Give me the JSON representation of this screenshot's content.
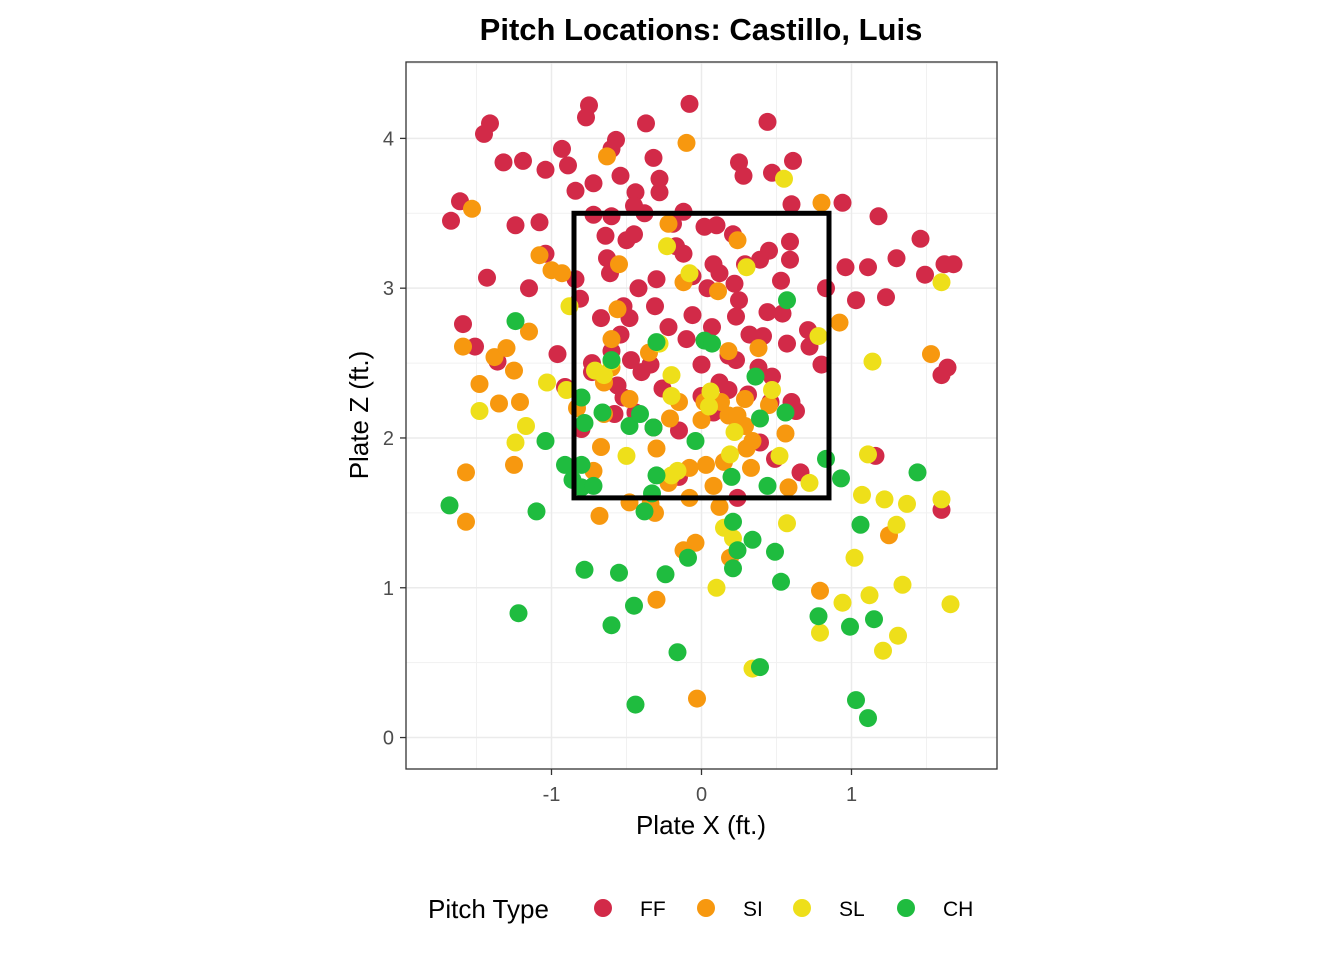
{
  "chart_data": {
    "type": "scatter",
    "title": "Pitch Locations: Castillo, Luis",
    "xlabel": "Plate X (ft.)",
    "ylabel": "Plate Z (ft.)",
    "xlim": [
      -1.97,
      1.97
    ],
    "ylim": [
      -0.21,
      4.51
    ],
    "x_ticks": [
      -1,
      0,
      1
    ],
    "y_ticks": [
      0,
      1,
      2,
      3,
      4
    ],
    "x_tick_labels": [
      "-1",
      "0",
      "1"
    ],
    "y_tick_labels": [
      "0",
      "1",
      "2",
      "3",
      "4"
    ],
    "grid": true,
    "legend": {
      "title": "Pitch Type",
      "position": "bottom"
    },
    "strike_zone": {
      "x_min": -0.85,
      "x_max": 0.85,
      "z_min": 1.6,
      "z_max": 3.5
    },
    "series": [
      {
        "name": "FF",
        "color": "#d22a48",
        "points": [
          [
            -0.75,
            4.22
          ],
          [
            -0.08,
            4.23
          ],
          [
            0.44,
            4.11
          ],
          [
            -1.41,
            4.1
          ],
          [
            -1.45,
            4.03
          ],
          [
            -0.77,
            4.14
          ],
          [
            -0.93,
            3.93
          ],
          [
            -0.57,
            3.99
          ],
          [
            -0.37,
            4.1
          ],
          [
            -0.6,
            3.93
          ],
          [
            -1.32,
            3.84
          ],
          [
            -1.19,
            3.85
          ],
          [
            -0.89,
            3.82
          ],
          [
            -1.04,
            3.79
          ],
          [
            -0.32,
            3.87
          ],
          [
            0.25,
            3.84
          ],
          [
            0.61,
            3.85
          ],
          [
            0.47,
            3.77
          ],
          [
            0.28,
            3.75
          ],
          [
            -0.72,
            3.7
          ],
          [
            -0.84,
            3.65
          ],
          [
            -0.54,
            3.75
          ],
          [
            -0.44,
            3.64
          ],
          [
            -0.28,
            3.73
          ],
          [
            -0.28,
            3.64
          ],
          [
            -1.61,
            3.58
          ],
          [
            -1.67,
            3.45
          ],
          [
            -1.24,
            3.42
          ],
          [
            -1.08,
            3.44
          ],
          [
            -0.45,
            3.55
          ],
          [
            -0.6,
            3.48
          ],
          [
            -0.72,
            3.49
          ],
          [
            -0.38,
            3.5
          ],
          [
            -0.19,
            3.43
          ],
          [
            -0.12,
            3.51
          ],
          [
            0.02,
            3.41
          ],
          [
            0.1,
            3.42
          ],
          [
            0.21,
            3.36
          ],
          [
            0.6,
            3.56
          ],
          [
            0.94,
            3.57
          ],
          [
            1.18,
            3.48
          ],
          [
            -0.64,
            3.35
          ],
          [
            -0.5,
            3.32
          ],
          [
            -0.45,
            3.36
          ],
          [
            -0.17,
            3.28
          ],
          [
            -0.12,
            3.23
          ],
          [
            0.08,
            3.16
          ],
          [
            0.29,
            3.16
          ],
          [
            0.45,
            3.25
          ],
          [
            0.39,
            3.19
          ],
          [
            0.59,
            3.31
          ],
          [
            0.59,
            3.19
          ],
          [
            -1.04,
            3.23
          ],
          [
            -0.63,
            3.2
          ],
          [
            -0.84,
            3.06
          ],
          [
            -0.61,
            3.1
          ],
          [
            -0.3,
            3.06
          ],
          [
            -0.42,
            3.0
          ],
          [
            -0.06,
            3.08
          ],
          [
            0.04,
            3.0
          ],
          [
            0.12,
            3.1
          ],
          [
            0.22,
            3.03
          ],
          [
            0.53,
            3.05
          ],
          [
            0.83,
            3.0
          ],
          [
            0.96,
            3.14
          ],
          [
            1.11,
            3.14
          ],
          [
            1.3,
            3.2
          ],
          [
            1.46,
            3.33
          ],
          [
            1.49,
            3.09
          ],
          [
            1.62,
            3.16
          ],
          [
            1.68,
            3.16
          ],
          [
            -1.43,
            3.07
          ],
          [
            -1.15,
            3.0
          ],
          [
            -0.81,
            2.93
          ],
          [
            -0.52,
            2.88
          ],
          [
            -0.31,
            2.88
          ],
          [
            -0.67,
            2.8
          ],
          [
            -0.48,
            2.8
          ],
          [
            -0.06,
            2.82
          ],
          [
            0.25,
            2.92
          ],
          [
            0.23,
            2.81
          ],
          [
            0.44,
            2.84
          ],
          [
            0.54,
            2.83
          ],
          [
            0.71,
            2.72
          ],
          [
            1.03,
            2.92
          ],
          [
            1.23,
            2.94
          ],
          [
            -1.59,
            2.76
          ],
          [
            -1.51,
            2.61
          ],
          [
            -1.36,
            2.51
          ],
          [
            -0.96,
            2.56
          ],
          [
            -0.73,
            2.5
          ],
          [
            -0.54,
            2.69
          ],
          [
            -0.6,
            2.58
          ],
          [
            -0.47,
            2.52
          ],
          [
            -0.22,
            2.74
          ],
          [
            0.07,
            2.74
          ],
          [
            0.18,
            2.55
          ],
          [
            0.32,
            2.69
          ],
          [
            0.41,
            2.68
          ],
          [
            0.57,
            2.63
          ],
          [
            0.72,
            2.61
          ],
          [
            0.8,
            2.49
          ],
          [
            -0.73,
            2.44
          ],
          [
            -0.56,
            2.35
          ],
          [
            -0.34,
            2.49
          ],
          [
            0.12,
            2.37
          ],
          [
            0.23,
            2.52
          ],
          [
            0.38,
            2.47
          ],
          [
            0.47,
            2.41
          ],
          [
            -0.91,
            2.34
          ],
          [
            -0.52,
            2.27
          ],
          [
            -0.26,
            2.33
          ],
          [
            0.0,
            2.28
          ],
          [
            0.18,
            2.32
          ],
          [
            0.31,
            2.29
          ],
          [
            0.46,
            2.24
          ],
          [
            0.6,
            2.24
          ],
          [
            0.63,
            2.18
          ],
          [
            -0.8,
            2.06
          ],
          [
            -0.58,
            2.16
          ],
          [
            -0.44,
            2.17
          ],
          [
            -0.32,
            2.07
          ],
          [
            -0.15,
            2.05
          ],
          [
            0.23,
            2.13
          ],
          [
            0.39,
            1.97
          ],
          [
            0.49,
            1.86
          ],
          [
            0.66,
            1.77
          ],
          [
            1.16,
            1.88
          ],
          [
            -0.15,
            1.74
          ],
          [
            0.24,
            1.6
          ],
          [
            1.6,
            2.42
          ],
          [
            1.64,
            2.47
          ],
          [
            1.6,
            1.52
          ],
          [
            -0.1,
            2.66
          ],
          [
            0.0,
            2.49
          ],
          [
            0.08,
            2.17
          ],
          [
            -0.4,
            2.44
          ]
        ]
      },
      {
        "name": "SI",
        "color": "#f7980f",
        "points": [
          [
            -0.1,
            3.97
          ],
          [
            -0.63,
            3.88
          ],
          [
            0.8,
            3.57
          ],
          [
            -1.53,
            3.53
          ],
          [
            -0.22,
            3.43
          ],
          [
            0.24,
            3.32
          ],
          [
            -1.08,
            3.22
          ],
          [
            -1.0,
            3.12
          ],
          [
            -0.55,
            3.16
          ],
          [
            -0.93,
            3.1
          ],
          [
            -0.12,
            3.04
          ],
          [
            0.11,
            2.98
          ],
          [
            -0.56,
            2.86
          ],
          [
            0.92,
            2.77
          ],
          [
            -1.15,
            2.71
          ],
          [
            -1.59,
            2.61
          ],
          [
            -1.38,
            2.54
          ],
          [
            -1.3,
            2.6
          ],
          [
            -1.25,
            2.45
          ],
          [
            -1.48,
            2.36
          ],
          [
            -0.6,
            2.66
          ],
          [
            -0.35,
            2.57
          ],
          [
            0.18,
            2.58
          ],
          [
            0.38,
            2.6
          ],
          [
            -0.6,
            2.47
          ],
          [
            -0.65,
            2.37
          ],
          [
            -0.48,
            2.26
          ],
          [
            -0.15,
            2.24
          ],
          [
            0.02,
            2.24
          ],
          [
            0.13,
            2.24
          ],
          [
            0.29,
            2.26
          ],
          [
            0.45,
            2.22
          ],
          [
            -1.35,
            2.23
          ],
          [
            -1.21,
            2.24
          ],
          [
            -0.83,
            2.2
          ],
          [
            -0.65,
            2.16
          ],
          [
            -0.21,
            2.13
          ],
          [
            0.0,
            2.12
          ],
          [
            0.18,
            2.15
          ],
          [
            0.29,
            2.08
          ],
          [
            0.34,
            1.98
          ],
          [
            0.56,
            2.03
          ],
          [
            -0.67,
            1.94
          ],
          [
            -0.3,
            1.93
          ],
          [
            -1.25,
            1.82
          ],
          [
            -1.57,
            1.77
          ],
          [
            -0.72,
            1.78
          ],
          [
            0.03,
            1.82
          ],
          [
            0.15,
            1.84
          ],
          [
            0.33,
            1.8
          ],
          [
            0.58,
            1.67
          ],
          [
            0.08,
            1.68
          ],
          [
            -0.08,
            1.6
          ],
          [
            -0.34,
            1.56
          ],
          [
            -0.48,
            1.57
          ],
          [
            0.12,
            1.54
          ],
          [
            -0.68,
            1.48
          ],
          [
            -1.57,
            1.44
          ],
          [
            -0.31,
            1.5
          ],
          [
            -0.12,
            1.25
          ],
          [
            -0.04,
            1.3
          ],
          [
            0.19,
            1.2
          ],
          [
            0.79,
            0.98
          ],
          [
            -0.3,
            0.92
          ],
          [
            1.25,
            1.35
          ],
          [
            -0.03,
            0.26
          ],
          [
            -0.22,
            1.7
          ],
          [
            -0.08,
            1.8
          ],
          [
            1.53,
            2.56
          ],
          [
            0.24,
            2.15
          ],
          [
            0.3,
            1.93
          ]
        ]
      },
      {
        "name": "SL",
        "color": "#eedf1a",
        "points": [
          [
            0.55,
            3.73
          ],
          [
            -0.23,
            3.28
          ],
          [
            -0.08,
            3.1
          ],
          [
            0.3,
            3.14
          ],
          [
            -0.88,
            2.88
          ],
          [
            0.78,
            2.68
          ],
          [
            -0.28,
            2.63
          ],
          [
            -0.6,
            2.51
          ],
          [
            -0.71,
            2.45
          ],
          [
            -0.9,
            2.32
          ],
          [
            -1.03,
            2.37
          ],
          [
            -1.48,
            2.18
          ],
          [
            -1.17,
            2.08
          ],
          [
            -1.24,
            1.97
          ],
          [
            -0.2,
            2.42
          ],
          [
            -0.2,
            2.28
          ],
          [
            0.05,
            2.21
          ],
          [
            0.22,
            2.04
          ],
          [
            0.47,
            2.32
          ],
          [
            1.14,
            2.51
          ],
          [
            1.6,
            3.04
          ],
          [
            -0.5,
            1.88
          ],
          [
            -0.16,
            1.78
          ],
          [
            -0.2,
            1.75
          ],
          [
            0.19,
            1.89
          ],
          [
            0.52,
            1.88
          ],
          [
            0.72,
            1.7
          ],
          [
            1.11,
            1.89
          ],
          [
            1.07,
            1.62
          ],
          [
            1.22,
            1.59
          ],
          [
            1.37,
            1.56
          ],
          [
            1.6,
            1.59
          ],
          [
            1.3,
            1.42
          ],
          [
            0.15,
            1.4
          ],
          [
            0.57,
            1.43
          ],
          [
            0.21,
            1.33
          ],
          [
            1.02,
            1.2
          ],
          [
            1.12,
            0.95
          ],
          [
            0.94,
            0.9
          ],
          [
            1.34,
            1.02
          ],
          [
            1.66,
            0.89
          ],
          [
            0.79,
            0.7
          ],
          [
            1.31,
            0.68
          ],
          [
            1.21,
            0.58
          ],
          [
            0.1,
            1.0
          ],
          [
            0.34,
            0.46
          ],
          [
            0.06,
            2.31
          ],
          [
            -0.65,
            2.42
          ]
        ]
      },
      {
        "name": "CH",
        "color": "#1fbc3f",
        "points": [
          [
            0.57,
            2.92
          ],
          [
            -0.3,
            2.64
          ],
          [
            0.02,
            2.65
          ],
          [
            0.07,
            2.63
          ],
          [
            -1.24,
            2.78
          ],
          [
            -0.6,
            2.52
          ],
          [
            0.36,
            2.41
          ],
          [
            -0.8,
            2.27
          ],
          [
            -0.78,
            2.1
          ],
          [
            -0.66,
            2.17
          ],
          [
            -0.48,
            2.08
          ],
          [
            -0.41,
            2.16
          ],
          [
            -0.32,
            2.07
          ],
          [
            -0.04,
            1.98
          ],
          [
            0.39,
            2.13
          ],
          [
            0.56,
            2.17
          ],
          [
            -1.04,
            1.98
          ],
          [
            -0.91,
            1.82
          ],
          [
            -0.8,
            1.82
          ],
          [
            -0.86,
            1.72
          ],
          [
            -0.8,
            1.67
          ],
          [
            -0.72,
            1.68
          ],
          [
            -0.3,
            1.75
          ],
          [
            -0.33,
            1.63
          ],
          [
            0.2,
            1.74
          ],
          [
            0.44,
            1.68
          ],
          [
            0.83,
            1.86
          ],
          [
            0.93,
            1.73
          ],
          [
            1.44,
            1.77
          ],
          [
            -1.68,
            1.55
          ],
          [
            -1.1,
            1.51
          ],
          [
            -0.38,
            1.51
          ],
          [
            0.21,
            1.44
          ],
          [
            0.24,
            1.25
          ],
          [
            0.34,
            1.32
          ],
          [
            0.49,
            1.24
          ],
          [
            1.06,
            1.42
          ],
          [
            -0.78,
            1.12
          ],
          [
            -0.55,
            1.1
          ],
          [
            -0.24,
            1.09
          ],
          [
            -0.09,
            1.2
          ],
          [
            0.21,
            1.13
          ],
          [
            0.53,
            1.04
          ],
          [
            -1.22,
            0.83
          ],
          [
            -0.45,
            0.88
          ],
          [
            -0.6,
            0.75
          ],
          [
            0.78,
            0.81
          ],
          [
            0.99,
            0.74
          ],
          [
            1.15,
            0.79
          ],
          [
            -0.16,
            0.57
          ],
          [
            0.39,
            0.47
          ],
          [
            -0.44,
            0.22
          ],
          [
            1.03,
            0.25
          ],
          [
            1.11,
            0.13
          ]
        ]
      }
    ]
  }
}
